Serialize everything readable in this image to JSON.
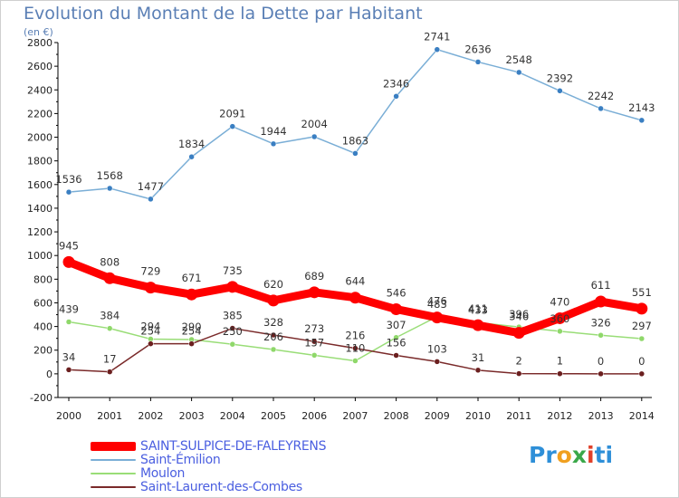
{
  "header": {
    "title": "Evolution du Montant de la Dette par Habitant",
    "subtitle": "(en €)"
  },
  "logo": {
    "text_parts": [
      "Pr",
      "o",
      "x",
      "i",
      "ti"
    ],
    "colors": [
      "#2e8fd8",
      "#f0a020",
      "#3aa84a",
      "#e0402a",
      "#2e8fd8"
    ]
  },
  "chart_data": {
    "type": "line",
    "x": [
      "2000",
      "2001",
      "2002",
      "2003",
      "2004",
      "2005",
      "2006",
      "2007",
      "2008",
      "2009",
      "2010",
      "2011",
      "2012",
      "2013",
      "2014"
    ],
    "ylim": [
      -200,
      2800
    ],
    "yticks": [
      -200,
      0,
      200,
      400,
      600,
      800,
      1000,
      1200,
      1400,
      1600,
      1800,
      2000,
      2200,
      2400,
      2600,
      2800
    ],
    "grid": false,
    "legend_placement": "bottom-left",
    "series": [
      {
        "name": "SAINT-SULPICE-DE-FALEYRENS",
        "color": "#ff0000",
        "values": [
          945,
          808,
          729,
          671,
          735,
          620,
          689,
          644,
          546,
          476,
          411,
          346,
          470,
          611,
          551
        ]
      },
      {
        "name": "Saint-Émilion",
        "color": "#7aaed6",
        "values": [
          1536,
          1568,
          1477,
          1834,
          2091,
          1944,
          2004,
          1863,
          2346,
          2741,
          2636,
          2548,
          2392,
          2242,
          2143
        ]
      },
      {
        "name": "Moulon",
        "color": "#99dd77",
        "values": [
          439,
          384,
          294,
          290,
          250,
          206,
          157,
          110,
          307,
          483,
          433,
          396,
          360,
          326,
          297
        ]
      },
      {
        "name": "Saint-Laurent-des-Combes",
        "color": "#7a2a2a",
        "values": [
          34,
          17,
          254,
          254,
          385,
          328,
          273,
          216,
          156,
          103,
          31,
          2,
          1,
          0,
          0
        ]
      }
    ]
  }
}
